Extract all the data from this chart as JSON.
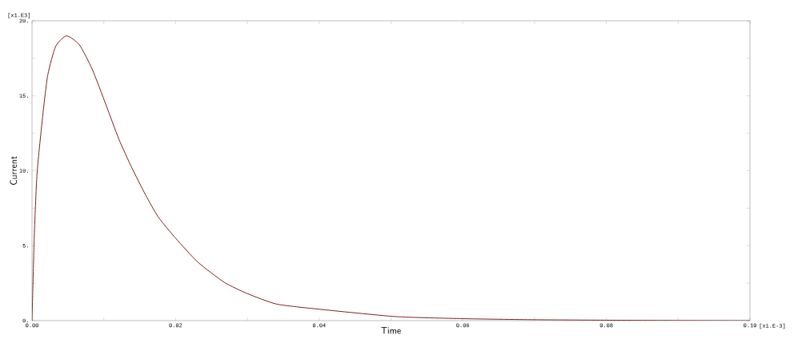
{
  "chart_data": {
    "type": "line",
    "xlabel": "Time",
    "ylabel": "Current",
    "annotations": [
      "[x1.E3]",
      "[x1.E-3]"
    ],
    "xlim": [
      0,
      0.1
    ],
    "ylim": [
      0,
      20
    ],
    "xticks": [
      {
        "value": 0,
        "label": "0.00"
      },
      {
        "value": 0.01,
        "label": null
      },
      {
        "value": 0.02,
        "label": "0.02"
      },
      {
        "value": 0.03,
        "label": null
      },
      {
        "value": 0.04,
        "label": "0.04"
      },
      {
        "value": 0.05,
        "label": null
      },
      {
        "value": 0.06,
        "label": "0.06"
      },
      {
        "value": 0.07,
        "label": null
      },
      {
        "value": 0.08,
        "label": "0.08"
      },
      {
        "value": 0.09,
        "label": null
      },
      {
        "value": 0.1,
        "label": "0.10"
      }
    ],
    "yticks": [
      {
        "value": 0,
        "label": "0."
      },
      {
        "value": 2.5,
        "label": null
      },
      {
        "value": 5,
        "label": "5."
      },
      {
        "value": 7.5,
        "label": null
      },
      {
        "value": 10,
        "label": "10."
      },
      {
        "value": 12.5,
        "label": null
      },
      {
        "value": 15,
        "label": "15."
      },
      {
        "value": 17.5,
        "label": null
      },
      {
        "value": 20,
        "label": "20."
      }
    ],
    "grid": false,
    "marker": "none",
    "line_style": "solid",
    "series": [
      {
        "color": "#7a2020",
        "x": [
          0,
          0.0003,
          0.0007,
          0.0015,
          0.0022,
          0.0033,
          0.0048,
          0.0066,
          0.0084,
          0.0103,
          0.0121,
          0.0139,
          0.0158,
          0.0176,
          0.02,
          0.0231,
          0.0268,
          0.03,
          0.0341,
          0.04,
          0.0506,
          0.06,
          0.07,
          0.08,
          0.09,
          0.1
        ],
        "values": [
          0,
          5.4,
          9.8,
          13.7,
          16.4,
          18.3,
          19.0,
          18.4,
          16.75,
          14.4,
          12.1,
          10.2,
          8.4,
          6.9,
          5.5,
          3.9,
          2.55,
          1.8,
          1.1,
          0.76,
          0.27,
          0.13,
          0.06,
          0.03,
          0.01,
          0
        ]
      }
    ]
  }
}
